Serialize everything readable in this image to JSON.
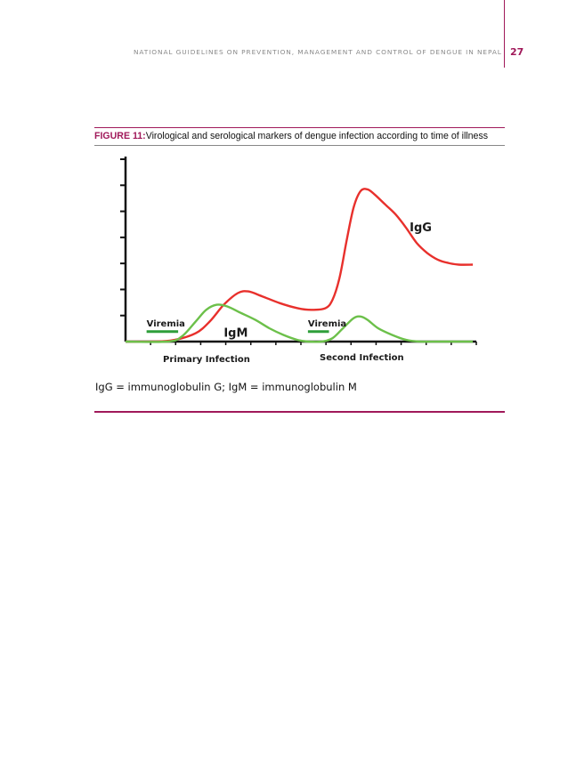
{
  "header": {
    "running_title": "NATIONAL GUIDELINES ON PREVENTION, MANAGEMENT AND CONTROL OF DENGUE IN NEPAL",
    "page_number": "27"
  },
  "figure": {
    "label": "FIGURE 11:",
    "caption": "Virological and serological markers of dengue infection according to time of illness",
    "footnote": "IgG = immunoglobulin G; IgM = immunoglobulin M"
  },
  "colors": {
    "accent": "#a0195a",
    "igg": "#e8302c",
    "igm": "#6cc04a",
    "axis": "#111111"
  },
  "chart_data": {
    "type": "line",
    "title": "",
    "xlabel": "",
    "ylabel": "",
    "x_range": [
      0,
      100
    ],
    "y_range": [
      0,
      100
    ],
    "y_tick_count": 7,
    "x_tick_count": 14,
    "grid": false,
    "legend": "none",
    "axis_labels": {
      "primary_infection": "Primary Infection",
      "second_infection": "Second Infection"
    },
    "series": [
      {
        "name": "IgG",
        "color": "#e8302c",
        "points": [
          [
            0,
            0
          ],
          [
            8,
            0
          ],
          [
            14,
            1
          ],
          [
            20,
            5
          ],
          [
            24,
            12
          ],
          [
            28,
            22
          ],
          [
            32,
            29
          ],
          [
            35,
            30
          ],
          [
            39,
            27
          ],
          [
            44,
            23
          ],
          [
            49,
            20
          ],
          [
            53,
            19
          ],
          [
            57,
            20
          ],
          [
            59,
            25
          ],
          [
            61,
            38
          ],
          [
            63,
            60
          ],
          [
            65,
            80
          ],
          [
            67,
            90
          ],
          [
            69,
            91
          ],
          [
            71,
            88
          ],
          [
            74,
            82
          ],
          [
            77,
            76
          ],
          [
            80,
            68
          ],
          [
            83,
            59
          ],
          [
            86,
            53
          ],
          [
            89,
            49
          ],
          [
            92,
            47
          ],
          [
            95,
            46
          ],
          [
            99,
            46
          ]
        ]
      },
      {
        "name": "IgM",
        "color": "#6cc04a",
        "points": [
          [
            0,
            0
          ],
          [
            12,
            0
          ],
          [
            16,
            3
          ],
          [
            20,
            12
          ],
          [
            23,
            19
          ],
          [
            26,
            22
          ],
          [
            29,
            21
          ],
          [
            33,
            17
          ],
          [
            37,
            13
          ],
          [
            41,
            8
          ],
          [
            45,
            4
          ],
          [
            49,
            1
          ],
          [
            52,
            0
          ],
          [
            56,
            0
          ],
          [
            59,
            2
          ],
          [
            62,
            8
          ],
          [
            65,
            14
          ],
          [
            67,
            15
          ],
          [
            69,
            13
          ],
          [
            72,
            8
          ],
          [
            76,
            4
          ],
          [
            80,
            1
          ],
          [
            84,
            0
          ],
          [
            90,
            0
          ],
          [
            99,
            0
          ]
        ]
      },
      {
        "name": "Viremia",
        "color": "#2e9e3a",
        "segments": [
          [
            [
              6,
              6
            ],
            [
              15,
              6
            ]
          ],
          [
            [
              52,
              6
            ],
            [
              58,
              6
            ]
          ]
        ]
      }
    ],
    "annotations": [
      {
        "text": "Viremia",
        "x": 6,
        "y": 9
      },
      {
        "text": "Viremia",
        "x": 52,
        "y": 9
      },
      {
        "text": "IgM",
        "x": 28,
        "y": 3
      },
      {
        "text": "IgG",
        "x": 81,
        "y": 66
      }
    ]
  }
}
